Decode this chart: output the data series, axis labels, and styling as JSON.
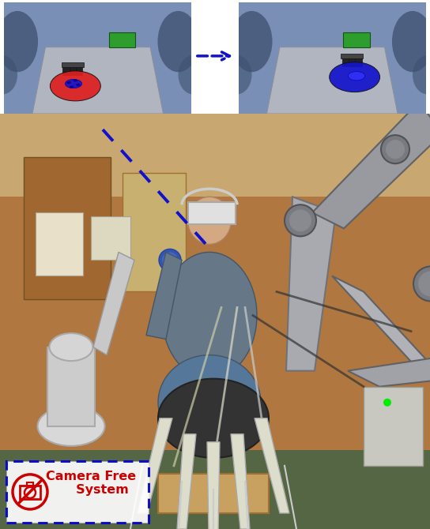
{
  "fig_width": 5.44,
  "fig_height": 6.7,
  "dpi": 100,
  "border_color": "#0000cc",
  "arrow_color": "#1111cc",
  "dashed_line_color": "#1111cc",
  "camera_free_text_color": "#cc0000",
  "camera_icon_color": "#cc0000",
  "vr_bg_color": "#7a8fb5",
  "vr_bg_dark": "#5a6f8a",
  "table_color": "#b0b5c0",
  "table_edge": "#8a8fa0",
  "green_box_color": "#2d9e2d",
  "red_ball_color": "#dd2020",
  "blue_ball_color": "#1515cc",
  "gripper_color": "#2a2a2a",
  "robot_shadow_color": "#4a5a75",
  "wall_color": "#b8874a",
  "floor_color": "#6b8a5a",
  "person_shirt_color": "#778899",
  "robot_arm_color": "#aaaaaa",
  "vr_headset_color": "#dddddd",
  "white_robot_color": "#cccccc",
  "box_color": "#c8a060",
  "green_mat_color": "#5a7a4a",
  "equipment_color": "#888888"
}
